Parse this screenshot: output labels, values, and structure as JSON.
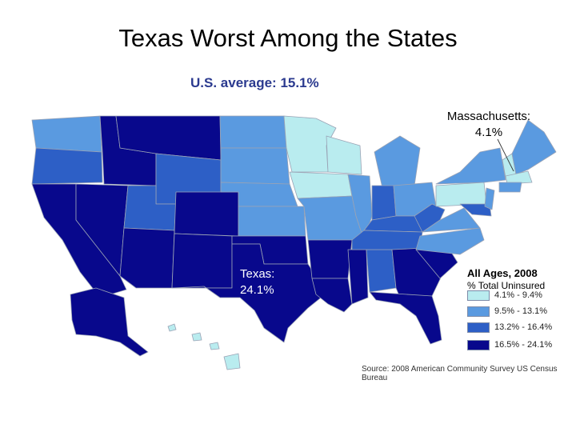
{
  "slide": {
    "title": "Texas Worst Among the States",
    "subtitle": "U.S. average: 15.1%"
  },
  "callouts": {
    "massachusetts_name": "Massachusetts:",
    "massachusetts_value": "4.1%",
    "texas_name": "Texas:",
    "texas_value": "24.1%"
  },
  "legend": {
    "title": "All Ages, 2008",
    "subtitle": "% Total Uninsured",
    "items": [
      {
        "label": "4.1% - 9.4%",
        "color": "#b9ecef"
      },
      {
        "label": "9.5% - 13.1%",
        "color": "#5a9ae0"
      },
      {
        "label": "13.2% - 16.4%",
        "color": "#2d5fc6"
      },
      {
        "label": "16.5% - 24.1%",
        "color": "#08088c"
      }
    ]
  },
  "source": "Source: 2008 American Community Survey US Census Bureau"
}
